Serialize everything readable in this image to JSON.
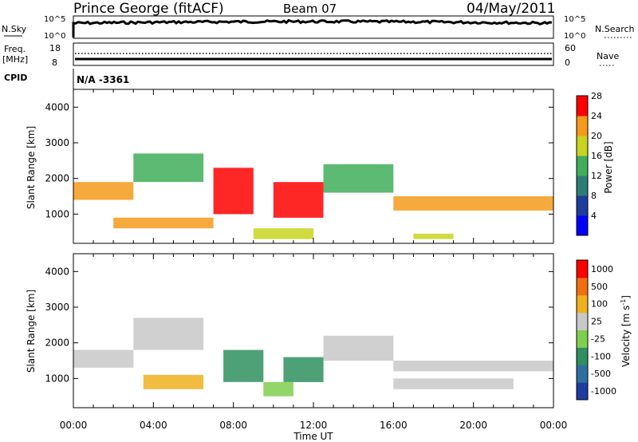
{
  "header": {
    "station": "Prince George (fitACF)",
    "beam": "Beam 07",
    "date": "04/May/2011"
  },
  "top_panels": {
    "nsky_label": "N.Sky",
    "nsky_ticks": [
      "10^5",
      "10^0"
    ],
    "nsearch_label": "N.Search",
    "nsearch_ticks": [
      "10^5",
      "10^0"
    ],
    "freq_label_1": "Freq.",
    "freq_label_2": "[MHz]",
    "freq_ticks": [
      "18",
      "8"
    ],
    "nave_label": "Nave",
    "nave_ticks": [
      "60",
      "0"
    ],
    "cpid_label": "CPID",
    "cpid_value": "N/A -3361"
  },
  "chart_data": [
    {
      "type": "heatmap",
      "title": "",
      "xlabel": "",
      "ylabel": "Slant Range [km]",
      "xlim": [
        0,
        24
      ],
      "ylim": [
        180,
        4500
      ],
      "x_ticks": [
        0,
        4,
        8,
        12,
        16,
        20,
        24
      ],
      "y_ticks": [
        1000,
        2000,
        3000,
        4000
      ],
      "colorbar": {
        "label": "Power [dB]",
        "ticks": [
          "4",
          "8",
          "12",
          "16",
          "20",
          "24",
          "28"
        ],
        "colors": [
          "#0000ff",
          "#1e3c9c",
          "#2e7d74",
          "#3fae5a",
          "#c8d420",
          "#f59a1a",
          "#ff0000"
        ]
      },
      "bands": [
        {
          "t0": 0.0,
          "t1": 3.0,
          "r0": 1400,
          "r1": 1900,
          "level": 5
        },
        {
          "t0": 3.0,
          "t1": 6.5,
          "r0": 1900,
          "r1": 2700,
          "level": 3
        },
        {
          "t0": 7.0,
          "t1": 9.0,
          "r0": 1000,
          "r1": 2300,
          "level": 6
        },
        {
          "t0": 10.0,
          "t1": 12.5,
          "r0": 900,
          "r1": 1900,
          "level": 6
        },
        {
          "t0": 12.5,
          "t1": 16.0,
          "r0": 1600,
          "r1": 2400,
          "level": 3
        },
        {
          "t0": 16.0,
          "t1": 24.0,
          "r0": 1100,
          "r1": 1500,
          "level": 5
        },
        {
          "t0": 2.0,
          "t1": 7.0,
          "r0": 600,
          "r1": 900,
          "level": 5
        },
        {
          "t0": 9.0,
          "t1": 12.0,
          "r0": 300,
          "r1": 600,
          "level": 4
        },
        {
          "t0": 17.0,
          "t1": 19.0,
          "r0": 300,
          "r1": 450,
          "level": 4
        }
      ]
    },
    {
      "type": "heatmap",
      "title": "",
      "xlabel": "Time UT",
      "ylabel": "Slant Range [km]",
      "xlim": [
        0,
        24
      ],
      "ylim": [
        180,
        4500
      ],
      "x_ticks": [
        0,
        4,
        8,
        12,
        16,
        20,
        24
      ],
      "x_tick_labels": [
        "00:00",
        "04:00",
        "08:00",
        "12:00",
        "16:00",
        "20:00",
        "00:00"
      ],
      "y_ticks": [
        1000,
        2000,
        3000,
        4000
      ],
      "colorbar": {
        "label": "Velocity [m s",
        "unit_exponent": "-1",
        "unit_suffix": "]",
        "ticks": [
          "1000",
          "500",
          "100",
          "25",
          "-25",
          "-100",
          "-500",
          "-1000"
        ],
        "colors": [
          "#1f3ca0",
          "#2e6fa0",
          "#2f8f5f",
          "#7fcf4f",
          "#c8c8c8",
          "#f0b020",
          "#f07010",
          "#ff0000"
        ]
      },
      "bands": [
        {
          "t0": 0.0,
          "t1": 3.0,
          "r0": 1300,
          "r1": 1800,
          "level": 4
        },
        {
          "t0": 3.0,
          "t1": 6.5,
          "r0": 1800,
          "r1": 2700,
          "level": 4
        },
        {
          "t0": 3.5,
          "t1": 6.5,
          "r0": 700,
          "r1": 1100,
          "level": 5
        },
        {
          "t0": 7.5,
          "t1": 9.5,
          "r0": 900,
          "r1": 1800,
          "level": 2
        },
        {
          "t0": 10.5,
          "t1": 12.5,
          "r0": 900,
          "r1": 1600,
          "level": 2
        },
        {
          "t0": 9.5,
          "t1": 11.0,
          "r0": 500,
          "r1": 900,
          "level": 3
        },
        {
          "t0": 12.5,
          "t1": 16.0,
          "r0": 1500,
          "r1": 2200,
          "level": 4
        },
        {
          "t0": 16.0,
          "t1": 24.0,
          "r0": 1200,
          "r1": 1500,
          "level": 4
        },
        {
          "t0": 16.0,
          "t1": 22.0,
          "r0": 700,
          "r1": 1000,
          "level": 4
        }
      ]
    }
  ]
}
